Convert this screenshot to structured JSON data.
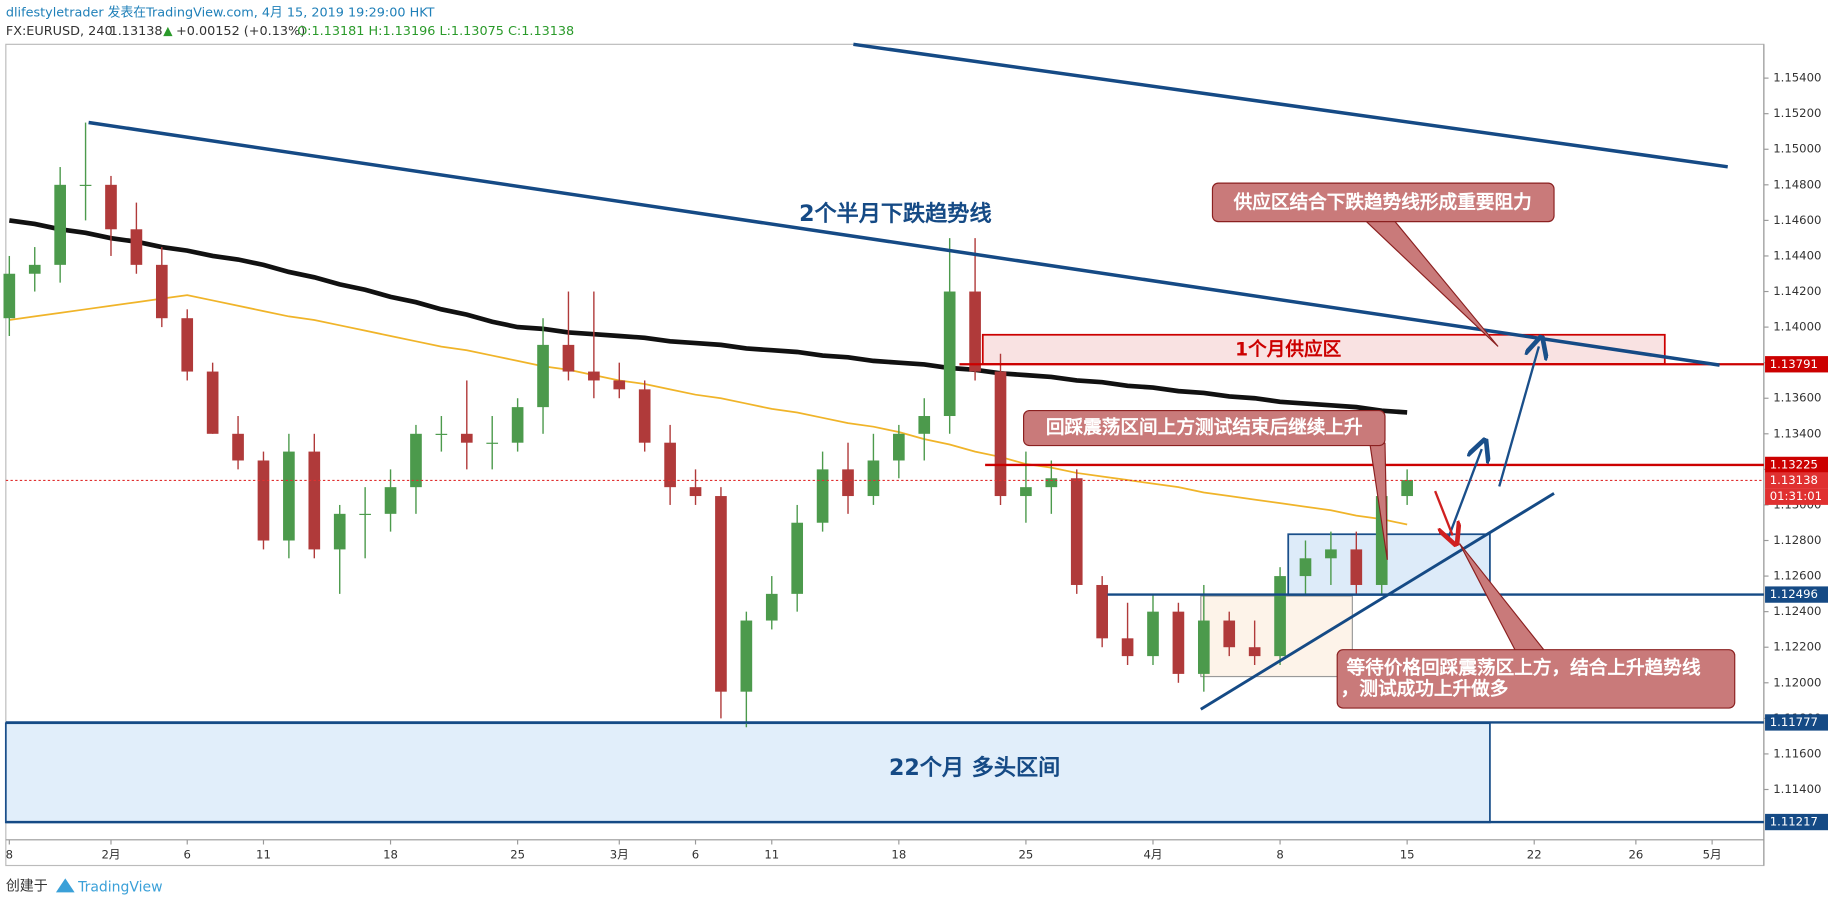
{
  "header": {
    "line1": "dlifestyletrader 发表在TradingView.com, 4月 15, 2019 19:29:00 HKT",
    "symbol": "FX:EURUSD, 240",
    "last": "1.13138",
    "change": "+0.00152 (+0.13%)",
    "ohlc": "O:1.13181 H:1.13196 L:1.13075 C:1.13138"
  },
  "footer": {
    "created": "创建于",
    "brand": "TradingView"
  },
  "chart_data": {
    "type": "candlestick",
    "categories": [
      "8",
      null,
      null,
      null,
      "2月",
      null,
      null,
      "6",
      null,
      null,
      "11",
      null,
      null,
      null,
      null,
      "18",
      null,
      null,
      null,
      null,
      "25",
      null,
      null,
      null,
      "3月",
      null,
      null,
      "6",
      null,
      null,
      "11",
      null,
      null,
      null,
      null,
      "18",
      null,
      null,
      null,
      null,
      "25",
      null,
      null,
      null,
      null,
      "4月",
      null,
      null,
      null,
      null,
      "8",
      null,
      null,
      null,
      null,
      "15",
      null,
      null,
      null,
      null,
      "22",
      null,
      null,
      null,
      "26",
      null,
      null,
      "5月"
    ],
    "open": [
      1.1405,
      1.143,
      1.1435,
      1.148,
      1.148,
      1.1455,
      1.1435,
      1.1405,
      1.1375,
      1.134,
      1.1325,
      1.128,
      1.133,
      1.1275,
      1.1295,
      1.1295,
      1.131,
      1.134,
      1.134,
      1.1335,
      1.1335,
      1.1355,
      1.139,
      1.1375,
      1.137,
      1.1365,
      1.1335,
      1.131,
      1.1305,
      1.1195,
      1.1235,
      1.125,
      1.129,
      1.132,
      1.1305,
      1.1325,
      1.134,
      1.135,
      1.142,
      1.1375,
      1.1305,
      1.131,
      1.1315,
      1.1255,
      1.1225,
      1.1215,
      1.124,
      1.1205,
      1.1235,
      1.122,
      1.1215,
      1.126,
      1.127,
      1.1275,
      1.1255,
      1.1305,
      null,
      null,
      null,
      null,
      null,
      null,
      null,
      null,
      null,
      null,
      null,
      null
    ],
    "high": [
      1.144,
      1.1445,
      1.149,
      1.1515,
      1.1485,
      1.147,
      1.1445,
      1.141,
      1.138,
      1.135,
      1.133,
      1.134,
      1.134,
      1.13,
      1.131,
      1.132,
      1.1345,
      1.135,
      1.137,
      1.135,
      1.136,
      1.1405,
      1.142,
      1.142,
      1.138,
      1.137,
      1.1345,
      1.132,
      1.131,
      1.124,
      1.126,
      1.13,
      1.133,
      1.1335,
      1.134,
      1.1345,
      1.136,
      1.145,
      1.145,
      1.1385,
      1.133,
      1.1325,
      1.132,
      1.126,
      1.1245,
      1.125,
      1.1245,
      1.1255,
      1.124,
      1.1235,
      1.1265,
      1.128,
      1.1285,
      1.1285,
      1.1325,
      1.132,
      null,
      null,
      null,
      null,
      null,
      null,
      null,
      null,
      null,
      null,
      null,
      null
    ],
    "low": [
      1.1395,
      1.142,
      1.1425,
      1.146,
      1.144,
      1.143,
      1.14,
      1.137,
      1.134,
      1.132,
      1.1275,
      1.127,
      1.127,
      1.125,
      1.127,
      1.1285,
      1.1295,
      1.133,
      1.132,
      1.132,
      1.133,
      1.134,
      1.137,
      1.136,
      1.136,
      1.133,
      1.13,
      1.13,
      1.118,
      1.1175,
      1.123,
      1.124,
      1.1285,
      1.1295,
      1.13,
      1.1315,
      1.1325,
      1.134,
      1.137,
      1.13,
      1.129,
      1.1295,
      1.125,
      1.122,
      1.121,
      1.121,
      1.12,
      1.1195,
      1.1215,
      1.121,
      1.121,
      1.125,
      1.1255,
      1.125,
      1.125,
      1.13,
      null,
      null,
      null,
      null,
      null,
      null,
      null,
      null,
      null,
      null,
      null,
      null
    ],
    "close": [
      1.143,
      1.1435,
      1.148,
      1.148,
      1.1455,
      1.1435,
      1.1405,
      1.1375,
      1.134,
      1.1325,
      1.128,
      1.133,
      1.1275,
      1.1295,
      1.1295,
      1.131,
      1.134,
      1.134,
      1.1335,
      1.1335,
      1.1355,
      1.139,
      1.1375,
      1.137,
      1.1365,
      1.1335,
      1.131,
      1.1305,
      1.1195,
      1.1235,
      1.125,
      1.129,
      1.132,
      1.1305,
      1.1325,
      1.134,
      1.135,
      1.142,
      1.1375,
      1.1305,
      1.131,
      1.1315,
      1.1255,
      1.1225,
      1.1215,
      1.124,
      1.1205,
      1.1235,
      1.122,
      1.1215,
      1.126,
      1.127,
      1.1275,
      1.1255,
      1.1305,
      1.1314,
      null,
      null,
      null,
      null,
      null,
      null,
      null,
      null,
      null,
      null,
      null,
      null
    ],
    "up_color": "#4c9a4c",
    "down_color": "#b03a3a",
    "series": [
      {
        "color": "#111111",
        "values": [
          1.146,
          1.1458,
          1.1455,
          1.1453,
          1.145,
          1.1448,
          1.1445,
          1.1443,
          1.144,
          1.1438,
          1.1435,
          1.1431,
          1.1428,
          1.1424,
          1.1421,
          1.1417,
          1.1414,
          1.141,
          1.1407,
          1.1403,
          1.14,
          1.1399,
          1.1397,
          1.1396,
          1.1395,
          1.1394,
          1.1392,
          1.1391,
          1.139,
          1.1388,
          1.1387,
          1.1386,
          1.1384,
          1.1383,
          1.1381,
          1.138,
          1.1379,
          1.1377,
          1.1376,
          1.1374,
          1.1373,
          1.1372,
          1.137,
          1.1369,
          1.1367,
          1.1366,
          1.1364,
          1.1363,
          1.1361,
          1.136,
          1.1358,
          1.1357,
          1.1356,
          1.1355,
          1.1353,
          1.1352,
          null,
          null,
          null,
          null,
          null,
          null,
          null,
          null,
          null,
          null,
          null,
          null
        ]
      },
      {
        "color": "#f0b429",
        "values": [
          1.1404,
          1.1406,
          1.1408,
          1.141,
          1.1412,
          1.1414,
          1.1416,
          1.1418,
          1.1415,
          1.1412,
          1.1409,
          1.1406,
          1.1404,
          1.1401,
          1.1398,
          1.1395,
          1.1392,
          1.1389,
          1.1387,
          1.1384,
          1.1381,
          1.1378,
          1.1376,
          1.1373,
          1.137,
          1.1368,
          1.1365,
          1.1362,
          1.136,
          1.1357,
          1.1354,
          1.1352,
          1.1349,
          1.1346,
          1.1344,
          1.1341,
          1.1337,
          1.1334,
          1.133,
          1.1327,
          1.1323,
          1.1321,
          1.1318,
          1.1316,
          1.1314,
          1.1312,
          1.131,
          1.1307,
          1.1305,
          1.1303,
          1.1301,
          1.1299,
          1.1297,
          1.1294,
          1.1292,
          1.1289,
          null,
          null,
          null,
          null,
          null,
          null,
          null,
          null,
          null,
          null,
          null,
          null
        ]
      }
    ],
    "ylim": [
      1.1113,
      1.1559
    ],
    "yticks": [
      {
        "value": 1.154,
        "label": "1.15400"
      },
      {
        "value": 1.152,
        "label": "1.15200"
      },
      {
        "value": 1.15,
        "label": "1.15000"
      },
      {
        "value": 1.148,
        "label": "1.14800"
      },
      {
        "value": 1.146,
        "label": "1.14600"
      },
      {
        "value": 1.144,
        "label": "1.14400"
      },
      {
        "value": 1.142,
        "label": "1.14200"
      },
      {
        "value": 1.14,
        "label": "1.14000"
      },
      {
        "value": 1.138,
        "label": "1.13800"
      },
      {
        "value": 1.136,
        "label": "1.13600"
      },
      {
        "value": 1.134,
        "label": "1.13400"
      },
      {
        "value": 1.132,
        "label": "1.13200"
      },
      {
        "value": 1.13,
        "label": "1.13000"
      },
      {
        "value": 1.128,
        "label": "1.12800"
      },
      {
        "value": 1.126,
        "label": "1.12600"
      },
      {
        "value": 1.124,
        "label": "1.12400"
      },
      {
        "value": 1.122,
        "label": "1.12200"
      },
      {
        "value": 1.12,
        "label": "1.12000"
      },
      {
        "value": 1.118,
        "label": "1.11800"
      },
      {
        "value": 1.116,
        "label": "1.11600"
      },
      {
        "value": 1.114,
        "label": "1.11400"
      }
    ],
    "grid": false,
    "levels": [
      {
        "value": 1.13791,
        "color": "#cc0000"
      },
      {
        "value": 1.13225,
        "color": "#cc0000"
      },
      {
        "value": 1.13138,
        "color": "#e03030"
      },
      {
        "value": 1.12496,
        "color": "#154a85"
      },
      {
        "value": 1.11777,
        "color": "#154a85"
      },
      {
        "value": 1.11217,
        "color": "#154a85"
      }
    ],
    "countdown": "01:31:01",
    "annotations": {
      "downtrend": "2个半月下跌趋势线",
      "supply_zone": "1个月供应区",
      "resistance": "供应区结合下跌趋势线形成重要阻力",
      "retest": "回踩震荡区间上方测试结束后继续上升",
      "wait_1": "等待价格回踩震荡区上方，结合上升趋势线",
      "wait_2": "，测试成功上升做多",
      "bull_range": "22个月 多头区间"
    }
  }
}
